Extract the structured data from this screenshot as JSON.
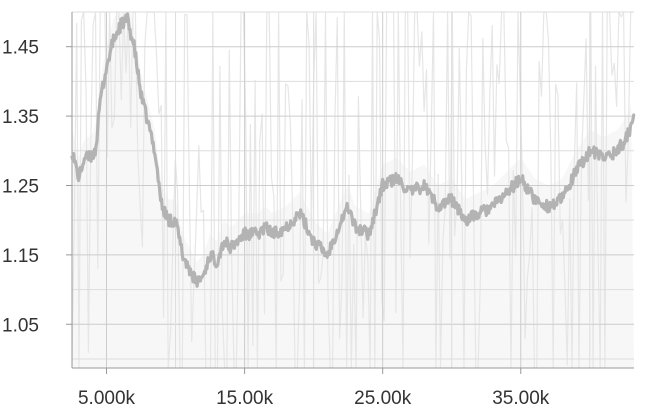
{
  "chart_data": {
    "type": "line",
    "title": "",
    "xlabel": "",
    "ylabel": "",
    "xlim": [
      2500,
      43200
    ],
    "ylim": [
      0.987,
      1.5
    ],
    "x_ticks": [
      {
        "value": 5000,
        "label": "5.000k"
      },
      {
        "value": 15000,
        "label": "15.00k"
      },
      {
        "value": 25000,
        "label": "25.00k"
      },
      {
        "value": 35000,
        "label": "35.00k"
      }
    ],
    "x_minor_grid": [
      10000,
      20000,
      30000,
      40000
    ],
    "y_ticks": [
      {
        "value": 1.05,
        "label": "1.05"
      },
      {
        "value": 1.15,
        "label": "1.15"
      },
      {
        "value": 1.25,
        "label": "1.25"
      },
      {
        "value": 1.35,
        "label": "1.35"
      },
      {
        "value": 1.45,
        "label": "1.45"
      }
    ],
    "y_minor_grid": [
      1.0,
      1.1,
      1.2,
      1.3,
      1.4,
      1.5
    ],
    "grid": true,
    "legend": "none",
    "colors": {
      "smoothed": "#b3b3b3",
      "raw": "#e6e6e6",
      "grid": "#cccccc",
      "axis": "#999999"
    },
    "series": [
      {
        "role": "smoothed",
        "x": [
          2500,
          3000,
          3400,
          3800,
          4200,
          4600,
          5000,
          5500,
          6000,
          6500,
          7000,
          7500,
          8000,
          8500,
          9000,
          9500,
          10000,
          10500,
          11000,
          11500,
          12000,
          12500,
          13000,
          13500,
          14000,
          14500,
          15000,
          15500,
          16000,
          16500,
          17000,
          18000,
          19000,
          20000,
          21000,
          22000,
          22500,
          23000,
          24000,
          25000,
          26000,
          27000,
          28000,
          29000,
          30000,
          31000,
          32000,
          33000,
          34000,
          35000,
          36000,
          37000,
          38000,
          39000,
          40000,
          41000,
          42000,
          42700,
          43200
        ],
        "values": [
          1.3,
          1.26,
          1.29,
          1.29,
          1.3,
          1.38,
          1.42,
          1.46,
          1.48,
          1.49,
          1.45,
          1.38,
          1.34,
          1.3,
          1.22,
          1.2,
          1.2,
          1.15,
          1.13,
          1.11,
          1.12,
          1.15,
          1.14,
          1.17,
          1.16,
          1.17,
          1.18,
          1.18,
          1.18,
          1.19,
          1.18,
          1.19,
          1.21,
          1.17,
          1.15,
          1.2,
          1.22,
          1.19,
          1.18,
          1.25,
          1.26,
          1.24,
          1.25,
          1.22,
          1.23,
          1.2,
          1.21,
          1.22,
          1.24,
          1.26,
          1.23,
          1.22,
          1.23,
          1.27,
          1.3,
          1.29,
          1.3,
          1.32,
          1.35
        ]
      }
    ],
    "raw_band": {
      "x_step": 170,
      "seed": 7,
      "spread": 0.18
    }
  }
}
